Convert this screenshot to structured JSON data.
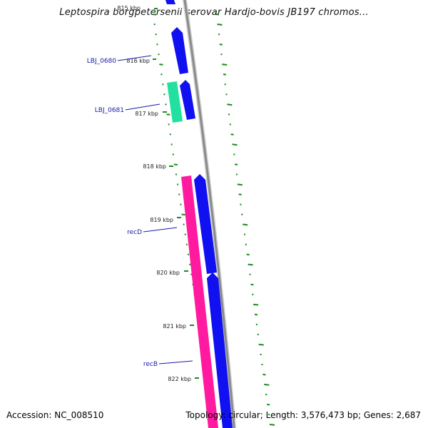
{
  "title": "Leptospira borgpetersenii serovar Hardjo-bovis JB197 chromos...",
  "footer": {
    "accession": "Accession: NC_008510",
    "topology": "Topology: circular; Length: 3,576,473 bp; Genes: 2,687"
  },
  "colors": {
    "backbone": "#8a8a8a",
    "forward_cds": "#1010f0",
    "reverse_cds_pink": "#ff1aa0",
    "reverse_cds_green": "#22e0a0",
    "gc_tick": "#1e8a1e",
    "label_text": "#1a1aa8"
  },
  "scale_labels": [
    "815 kbp",
    "816 kbp",
    "817 kbp",
    "818 kbp",
    "819 kbp",
    "820 kbp",
    "821 kbp",
    "822 kbp"
  ],
  "gene_labels": [
    "LBJ_0680",
    "LBJ_0681",
    "recD",
    "recB"
  ]
}
